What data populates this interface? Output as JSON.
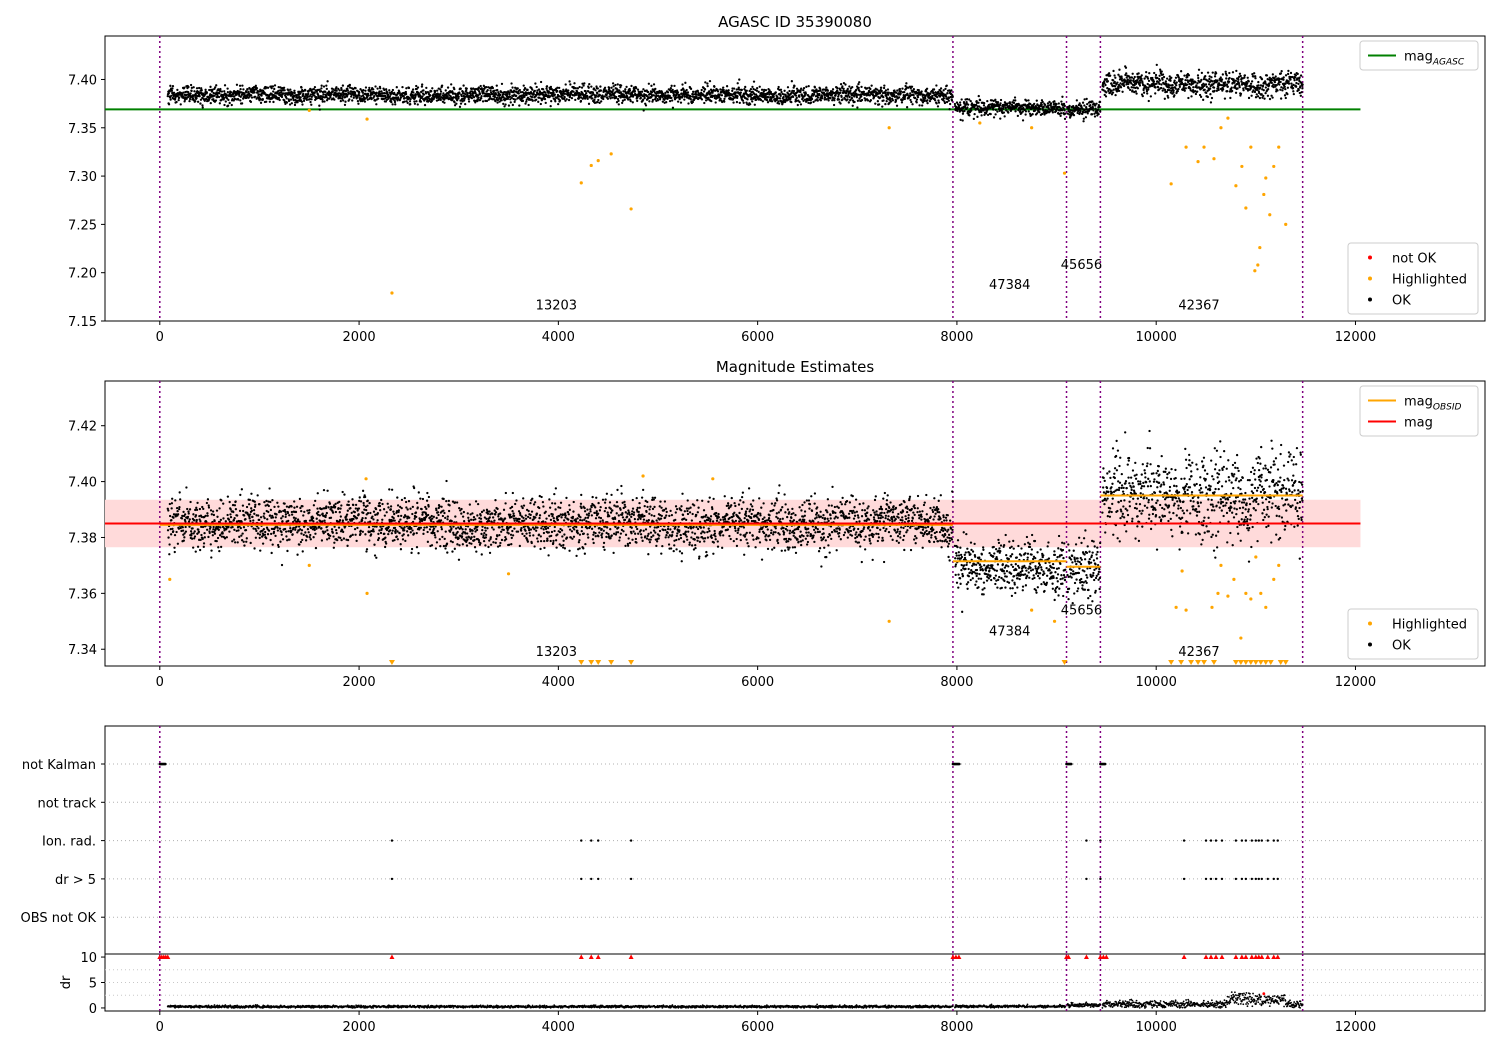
{
  "chart_data": [
    {
      "type": "scatter",
      "title": "AGASC ID 35390080",
      "xlim": [
        -550,
        13300
      ],
      "ylim": [
        7.15,
        7.445
      ],
      "xticks": [
        0,
        2000,
        4000,
        6000,
        8000,
        10000,
        12000
      ],
      "yticks": [
        7.15,
        7.2,
        7.25,
        7.3,
        7.35,
        7.4
      ],
      "ytick_decimals": 2,
      "obsid_boundaries": [
        0,
        7960,
        9100,
        9440,
        11470
      ],
      "obsid_labels": [
        {
          "label": "13203",
          "x": 3980,
          "y": 7.162
        },
        {
          "label": "47384",
          "x": 8530,
          "y": 7.183
        },
        {
          "label": "45656",
          "x": 9250,
          "y": 7.204
        },
        {
          "label": "42367",
          "x": 10430,
          "y": 7.162
        }
      ],
      "hlines": [
        {
          "name": "mag_AGASC",
          "y": 7.369,
          "x": [
            -550,
            12050
          ],
          "color": "#008000"
        }
      ],
      "segments": [
        {
          "x": [
            80,
            7960
          ],
          "mean": 7.384,
          "sd": 0.0045
        },
        {
          "x": [
            7980,
            9090
          ],
          "mean": 7.37,
          "sd": 0.004
        },
        {
          "x": [
            9110,
            9440
          ],
          "mean": 7.369,
          "sd": 0.0045
        },
        {
          "x": [
            9460,
            11470
          ],
          "mean": 7.395,
          "sd": 0.0065
        }
      ],
      "highlighted": [
        [
          2330,
          7.179
        ],
        [
          4230,
          7.293
        ],
        [
          4330,
          7.311
        ],
        [
          4400,
          7.316
        ],
        [
          4530,
          7.323
        ],
        [
          4730,
          7.266
        ],
        [
          7320,
          7.35
        ],
        [
          2080,
          7.359
        ],
        [
          1500,
          7.368
        ],
        [
          10150,
          7.292
        ],
        [
          10300,
          7.33
        ],
        [
          10420,
          7.315
        ],
        [
          10480,
          7.33
        ],
        [
          10580,
          7.318
        ],
        [
          10650,
          7.35
        ],
        [
          10720,
          7.36
        ],
        [
          10800,
          7.29
        ],
        [
          10860,
          7.31
        ],
        [
          10900,
          7.267
        ],
        [
          10950,
          7.33
        ],
        [
          10990,
          7.202
        ],
        [
          11020,
          7.208
        ],
        [
          11040,
          7.226
        ],
        [
          11080,
          7.281
        ],
        [
          11100,
          7.298
        ],
        [
          11140,
          7.26
        ],
        [
          11180,
          7.31
        ],
        [
          11230,
          7.33
        ],
        [
          11300,
          7.25
        ],
        [
          9080,
          7.303
        ],
        [
          8230,
          7.355
        ],
        [
          8750,
          7.35
        ]
      ],
      "not_ok": [],
      "legends": [
        {
          "position": "upper-right",
          "entries": [
            {
              "name": "mag",
              "sub": "AGASC",
              "kind": "line",
              "color": "#008000"
            }
          ]
        },
        {
          "position": "lower-right",
          "entries": [
            {
              "name": "not OK",
              "kind": "point",
              "color": "#ff0000"
            },
            {
              "name": "Highlighted",
              "kind": "point",
              "color": "#ffa500"
            },
            {
              "name": "OK",
              "kind": "point",
              "color": "#000000"
            }
          ]
        }
      ]
    },
    {
      "type": "scatter",
      "title": "Magnitude Estimates",
      "xlim": [
        -550,
        13300
      ],
      "ylim": [
        7.334,
        7.436
      ],
      "xticks": [
        0,
        2000,
        4000,
        6000,
        8000,
        10000,
        12000
      ],
      "yticks": [
        7.34,
        7.36,
        7.38,
        7.4,
        7.42
      ],
      "ytick_decimals": 2,
      "obsid_boundaries": [
        0,
        7960,
        9100,
        9440,
        11470
      ],
      "obsid_labels": [
        {
          "label": "13203",
          "x": 3980,
          "y": 7.3375
        },
        {
          "label": "47384",
          "x": 8530,
          "y": 7.345
        },
        {
          "label": "45656",
          "x": 9250,
          "y": 7.3525
        },
        {
          "label": "42367",
          "x": 10430,
          "y": 7.3375
        }
      ],
      "band": {
        "x": [
          -550,
          12050
        ],
        "y": [
          7.3765,
          7.3935
        ],
        "color": "#ffdada"
      },
      "hlines": [
        {
          "name": "mag",
          "y": 7.385,
          "x": [
            -550,
            12050
          ],
          "color": "#ff0000"
        }
      ],
      "obsid_mags": [
        {
          "x": [
            0,
            7960
          ],
          "y": 7.3845
        },
        {
          "x": [
            7960,
            9100
          ],
          "y": 7.3715
        },
        {
          "x": [
            9100,
            9440
          ],
          "y": 7.3695
        },
        {
          "x": [
            9440,
            11470
          ],
          "y": 7.395
        }
      ],
      "segments": [
        {
          "x": [
            80,
            7960
          ],
          "mean": 7.385,
          "sd": 0.0045
        },
        {
          "x": [
            7980,
            9090
          ],
          "mean": 7.37,
          "sd": 0.0048
        },
        {
          "x": [
            9110,
            9440
          ],
          "mean": 7.369,
          "sd": 0.005
        },
        {
          "x": [
            9460,
            11470
          ],
          "mean": 7.395,
          "sd": 0.0075
        }
      ],
      "highlighted": [
        [
          100,
          7.365
        ],
        [
          2080,
          7.36
        ],
        [
          1500,
          7.37
        ],
        [
          3500,
          7.367
        ],
        [
          7320,
          7.35
        ],
        [
          8750,
          7.354
        ],
        [
          10260,
          7.368
        ],
        [
          10200,
          7.355
        ],
        [
          10300,
          7.354
        ],
        [
          10560,
          7.355
        ],
        [
          10620,
          7.36
        ],
        [
          10650,
          7.37
        ],
        [
          10720,
          7.359
        ],
        [
          10780,
          7.365
        ],
        [
          10850,
          7.344
        ],
        [
          10900,
          7.36
        ],
        [
          10950,
          7.358
        ],
        [
          11000,
          7.373
        ],
        [
          11050,
          7.36
        ],
        [
          11100,
          7.355
        ],
        [
          11180,
          7.365
        ],
        [
          11230,
          7.37
        ],
        [
          8980,
          7.35
        ],
        [
          4850,
          7.402
        ],
        [
          5550,
          7.401
        ],
        [
          2070,
          7.401
        ]
      ],
      "below_range": [
        2330,
        4230,
        4330,
        4400,
        4530,
        4730,
        9080,
        10150,
        10250,
        10350,
        10420,
        10480,
        10580,
        10800,
        10850,
        10900,
        10950,
        11000,
        11050,
        11100,
        11150,
        11250,
        11300
      ],
      "legends": [
        {
          "position": "upper-right",
          "entries": [
            {
              "name": "mag",
              "sub": "OBSID",
              "kind": "line",
              "color": "#ffa500"
            },
            {
              "name": "mag",
              "kind": "line",
              "color": "#ff0000"
            }
          ]
        },
        {
          "position": "lower-right",
          "entries": [
            {
              "name": "Highlighted",
              "kind": "point",
              "color": "#ffa500"
            },
            {
              "name": "OK",
              "kind": "point",
              "color": "#000000"
            }
          ]
        }
      ]
    },
    {
      "type": "scatter",
      "title": "",
      "xlim": [
        -550,
        13300
      ],
      "categories": [
        "not Kalman",
        "not track",
        "Ion. rad.",
        "dr > 5",
        "OBS not OK"
      ],
      "obsid_boundaries": [
        0,
        7960,
        9100,
        9440,
        11470
      ],
      "flags": {
        "not Kalman": {
          "ranges": [
            [
              0,
              60
            ],
            [
              7960,
              8030
            ],
            [
              9100,
              9150
            ],
            [
              9440,
              9490
            ]
          ]
        },
        "not track": {
          "ranges": []
        },
        "Ion. rad.": {
          "points": [
            2330,
            4230,
            4330,
            4400,
            4730,
            9300,
            9440,
            10280,
            10500,
            10550,
            10600,
            10660,
            10800,
            10860,
            10900,
            10960,
            11000,
            11030,
            11060,
            11120,
            11180,
            11220
          ]
        },
        "dr > 5": {
          "points": [
            2330,
            4230,
            4330,
            4400,
            4730,
            9300,
            9440,
            10280,
            10500,
            10550,
            10600,
            10660,
            10800,
            10860,
            10900,
            10960,
            11000,
            11030,
            11060,
            11120,
            11180,
            11220
          ]
        },
        "OBS not OK": {
          "ranges": []
        }
      }
    },
    {
      "type": "scatter",
      "title": "",
      "xlabel": "",
      "ylabel": "dr",
      "xlim": [
        -550,
        13300
      ],
      "ylim": [
        -0.6,
        10.6
      ],
      "xticks": [
        0,
        2000,
        4000,
        6000,
        8000,
        10000,
        12000
      ],
      "yticks": [
        0,
        5,
        10
      ],
      "ytick_decimals": 0,
      "obsid_boundaries": [
        0,
        7960,
        9100,
        9440,
        11470
      ],
      "segments": [
        {
          "x": [
            80,
            7960
          ],
          "mean": 0.25,
          "sd": 0.12
        },
        {
          "x": [
            7980,
            9090
          ],
          "mean": 0.3,
          "sd": 0.12
        },
        {
          "x": [
            9110,
            9440
          ],
          "mean": 0.55,
          "sd": 0.2
        },
        {
          "x": [
            9460,
            11470
          ],
          "mean": 0.7,
          "sd": 0.35
        }
      ],
      "bump": {
        "x": [
          10700,
          11300
        ],
        "y": 1.8
      },
      "clipped_at_10": [
        0,
        20,
        40,
        60,
        80,
        2330,
        4230,
        4330,
        4400,
        4730,
        7960,
        7990,
        8020,
        9100,
        9120,
        9300,
        9440,
        9470,
        9500,
        10280,
        10500,
        10550,
        10600,
        10660,
        10800,
        10860,
        10900,
        10960,
        11000,
        11030,
        11060,
        11120,
        11180,
        11220
      ],
      "red_points": [
        [
          11080,
          2.8
        ]
      ]
    }
  ]
}
